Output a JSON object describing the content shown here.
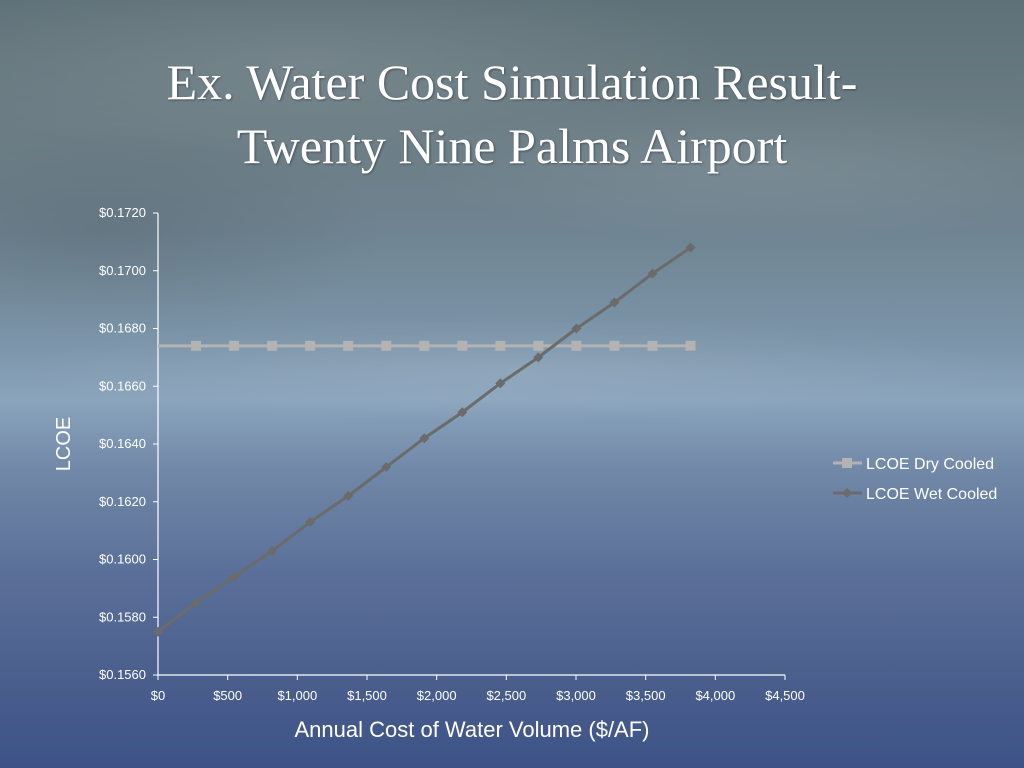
{
  "slide": {
    "title_line1": "Ex. Water Cost Simulation Result-",
    "title_line2": "Twenty Nine Palms Airport"
  },
  "colors": {
    "dry_series": "#b3b3b3",
    "wet_series": "#6b6b6b",
    "axis": "#ffffff",
    "text": "#ffffff"
  },
  "chart_data": {
    "type": "line",
    "title": "",
    "xlabel": "Annual Cost of Water Volume ($/AF)",
    "ylabel": "LCOE",
    "xlim": [
      0,
      4500
    ],
    "ylim": [
      0.156,
      0.172
    ],
    "x_ticks": [
      0,
      500,
      1000,
      1500,
      2000,
      2500,
      3000,
      3500,
      4000,
      4500
    ],
    "x_tick_labels": [
      "$0",
      "$500",
      "$1,000",
      "$1,500",
      "$2,000",
      "$2,500",
      "$3,000",
      "$3,500",
      "$4,000",
      "$4,500"
    ],
    "y_ticks": [
      0.156,
      0.158,
      0.16,
      0.162,
      0.164,
      0.166,
      0.168,
      0.17,
      0.172
    ],
    "y_tick_labels": [
      "$0.1560",
      "$0.1580",
      "$0.1600",
      "$0.1620",
      "$0.1640",
      "$0.1660",
      "$0.1680",
      "$0.1700",
      "$0.1720"
    ],
    "grid": false,
    "legend_position": "right",
    "series": [
      {
        "name": "LCOE Dry Cooled",
        "marker": "square",
        "color": "#b3b3b3",
        "x": [
          0,
          273,
          546,
          819,
          1092,
          1365,
          1638,
          1911,
          2184,
          2457,
          2730,
          3003,
          3276,
          3549,
          3822
        ],
        "y": [
          0.1674,
          0.1674,
          0.1674,
          0.1674,
          0.1674,
          0.1674,
          0.1674,
          0.1674,
          0.1674,
          0.1674,
          0.1674,
          0.1674,
          0.1674,
          0.1674,
          0.1674
        ]
      },
      {
        "name": "LCOE Wet Cooled",
        "marker": "diamond",
        "color": "#6b6b6b",
        "x": [
          0,
          273,
          546,
          819,
          1092,
          1365,
          1638,
          1911,
          2184,
          2457,
          2730,
          3003,
          3276,
          3549,
          3822
        ],
        "y": [
          0.1575,
          0.1585,
          0.1594,
          0.1603,
          0.1613,
          0.1622,
          0.1632,
          0.1642,
          0.1651,
          0.1661,
          0.167,
          0.168,
          0.1689,
          0.1699,
          0.1708
        ]
      }
    ]
  }
}
